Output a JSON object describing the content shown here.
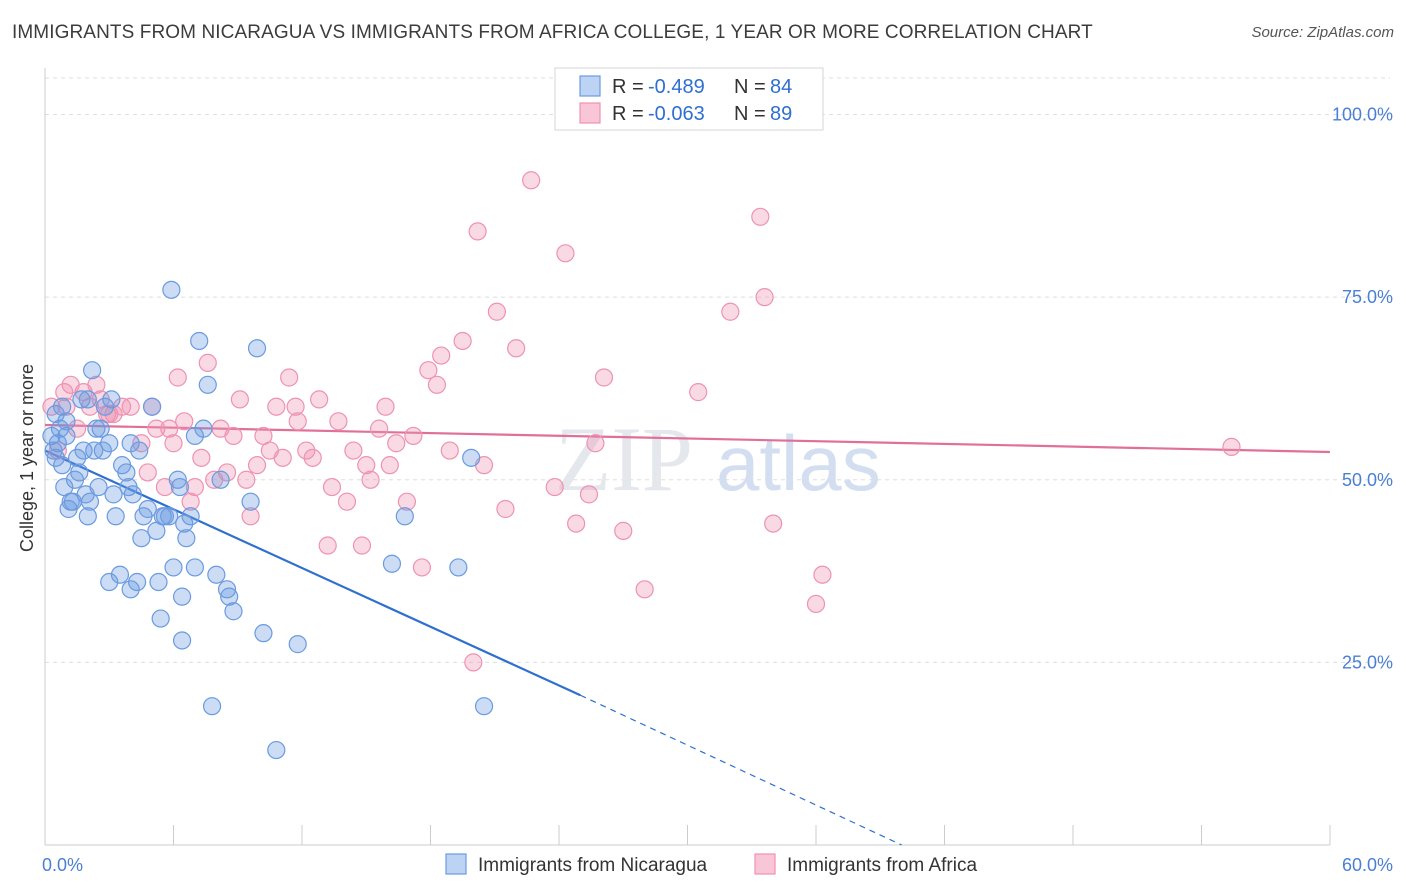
{
  "title": "IMMIGRANTS FROM NICARAGUA VS IMMIGRANTS FROM AFRICA COLLEGE, 1 YEAR OR MORE CORRELATION CHART",
  "source": "Source: ZipAtlas.com",
  "watermark": {
    "zip": "ZIP",
    "atlas": "atlas"
  },
  "legend": {
    "r_label": "R =",
    "n_label": "N =",
    "series": [
      {
        "r": "-0.489",
        "n": "84"
      },
      {
        "r": "-0.063",
        "n": "89"
      }
    ]
  },
  "chart_data": {
    "type": "scatter",
    "ylabel": "College, 1 year or more",
    "xlim": [
      0,
      60
    ],
    "ylim": [
      0,
      105
    ],
    "x_tick_labels": [
      "0.0%",
      "60.0%"
    ],
    "y_ticks": [
      25,
      50,
      75,
      100
    ],
    "y_tick_labels": [
      "25.0%",
      "50.0%",
      "75.0%",
      "100.0%"
    ],
    "grid": true,
    "colors": {
      "nicaragua": "#6a9be0",
      "africa": "#ef92b2",
      "nic_line": "#2f6fd0",
      "afr_line": "#e07099"
    },
    "series": [
      {
        "name": "Immigrants from Nicaragua",
        "trend": {
          "x0": 0,
          "y0": 54.0,
          "x1": 25,
          "y1": 20.5,
          "dash_to_x": 40,
          "dash_to_y": 0
        },
        "points": [
          [
            0.3,
            56
          ],
          [
            0.4,
            54
          ],
          [
            0.5,
            53
          ],
          [
            0.6,
            55
          ],
          [
            0.7,
            57
          ],
          [
            0.8,
            52
          ],
          [
            0.9,
            49
          ],
          [
            1.0,
            58
          ],
          [
            1.1,
            46
          ],
          [
            1.2,
            47
          ],
          [
            1.4,
            50
          ],
          [
            1.6,
            51
          ],
          [
            1.7,
            61
          ],
          [
            1.8,
            54
          ],
          [
            1.9,
            48
          ],
          [
            2.0,
            45
          ],
          [
            2.1,
            47
          ],
          [
            2.2,
            65
          ],
          [
            2.4,
            57
          ],
          [
            2.5,
            49
          ],
          [
            2.6,
            57
          ],
          [
            2.8,
            60
          ],
          [
            3.0,
            55
          ],
          [
            3.1,
            61
          ],
          [
            3.2,
            48
          ],
          [
            3.3,
            45
          ],
          [
            3.5,
            37
          ],
          [
            3.6,
            52
          ],
          [
            3.8,
            51
          ],
          [
            4.0,
            35
          ],
          [
            4.1,
            48
          ],
          [
            4.3,
            36
          ],
          [
            4.5,
            42
          ],
          [
            4.6,
            45
          ],
          [
            4.8,
            46
          ],
          [
            5.0,
            60
          ],
          [
            5.2,
            43
          ],
          [
            5.3,
            36
          ],
          [
            5.4,
            31
          ],
          [
            5.6,
            45
          ],
          [
            5.8,
            45
          ],
          [
            5.9,
            76
          ],
          [
            6.0,
            38
          ],
          [
            6.2,
            50
          ],
          [
            6.3,
            49
          ],
          [
            6.4,
            34
          ],
          [
            6.5,
            44
          ],
          [
            6.6,
            42
          ],
          [
            6.8,
            45
          ],
          [
            7.0,
            38
          ],
          [
            7.2,
            69
          ],
          [
            7.4,
            57
          ],
          [
            7.6,
            63
          ],
          [
            7.8,
            19
          ],
          [
            8.0,
            37
          ],
          [
            8.2,
            50
          ],
          [
            8.5,
            35
          ],
          [
            8.6,
            34
          ],
          [
            8.8,
            32
          ],
          [
            9.6,
            47
          ],
          [
            9.9,
            68
          ],
          [
            10.2,
            29
          ],
          [
            10.8,
            13
          ],
          [
            11.8,
            27.5
          ],
          [
            16.2,
            38.5
          ],
          [
            16.8,
            45
          ],
          [
            19.3,
            38
          ],
          [
            19.9,
            53
          ],
          [
            20.5,
            19
          ],
          [
            3.0,
            36
          ],
          [
            1.5,
            53
          ],
          [
            2.7,
            54
          ],
          [
            4.4,
            54
          ],
          [
            0.8,
            60
          ],
          [
            1.3,
            47
          ],
          [
            2.3,
            54
          ],
          [
            5.5,
            45
          ],
          [
            7.0,
            56
          ],
          [
            3.9,
            49
          ],
          [
            0.5,
            59
          ],
          [
            1.0,
            56
          ],
          [
            6.4,
            28
          ],
          [
            2.0,
            61
          ],
          [
            4.0,
            55
          ]
        ]
      },
      {
        "name": "Immigrants from Africa",
        "trend": {
          "x0": 0,
          "y0": 57.5,
          "x1": 60,
          "y1": 53.8
        },
        "points": [
          [
            0.3,
            60
          ],
          [
            0.6,
            54
          ],
          [
            0.9,
            62
          ],
          [
            1.2,
            63
          ],
          [
            1.5,
            57
          ],
          [
            1.8,
            62
          ],
          [
            2.1,
            60
          ],
          [
            2.6,
            61
          ],
          [
            2.9,
            59
          ],
          [
            3.2,
            59
          ],
          [
            3.6,
            60
          ],
          [
            4.0,
            60
          ],
          [
            4.5,
            55
          ],
          [
            4.8,
            51
          ],
          [
            5.2,
            57
          ],
          [
            5.6,
            49
          ],
          [
            5.8,
            57
          ],
          [
            6.0,
            55
          ],
          [
            6.2,
            64
          ],
          [
            6.5,
            58
          ],
          [
            6.8,
            47
          ],
          [
            7.0,
            49
          ],
          [
            7.3,
            53
          ],
          [
            7.6,
            66
          ],
          [
            7.9,
            50
          ],
          [
            8.2,
            57
          ],
          [
            8.5,
            51
          ],
          [
            8.8,
            56
          ],
          [
            9.1,
            61
          ],
          [
            9.4,
            50
          ],
          [
            9.6,
            45
          ],
          [
            9.9,
            52
          ],
          [
            10.2,
            56
          ],
          [
            10.5,
            54
          ],
          [
            10.8,
            60
          ],
          [
            11.1,
            53
          ],
          [
            11.4,
            64
          ],
          [
            11.8,
            58
          ],
          [
            12.2,
            54
          ],
          [
            12.5,
            53
          ],
          [
            12.8,
            61
          ],
          [
            13.2,
            41
          ],
          [
            13.4,
            49
          ],
          [
            13.7,
            58
          ],
          [
            14.1,
            47
          ],
          [
            14.4,
            54
          ],
          [
            14.8,
            41
          ],
          [
            15.0,
            52
          ],
          [
            15.2,
            50
          ],
          [
            15.6,
            57
          ],
          [
            15.9,
            60
          ],
          [
            16.1,
            52
          ],
          [
            16.4,
            55
          ],
          [
            16.9,
            47
          ],
          [
            17.2,
            56
          ],
          [
            17.6,
            38
          ],
          [
            17.9,
            65
          ],
          [
            18.3,
            63
          ],
          [
            18.5,
            67
          ],
          [
            18.9,
            54
          ],
          [
            19.5,
            69
          ],
          [
            20.0,
            25
          ],
          [
            20.2,
            84
          ],
          [
            20.5,
            52
          ],
          [
            21.1,
            73
          ],
          [
            21.5,
            46
          ],
          [
            22.0,
            68
          ],
          [
            22.7,
            91
          ],
          [
            23.8,
            49
          ],
          [
            24.3,
            81
          ],
          [
            24.8,
            44
          ],
          [
            25.4,
            48
          ],
          [
            25.7,
            55
          ],
          [
            26.1,
            64
          ],
          [
            27.0,
            43
          ],
          [
            28.0,
            35
          ],
          [
            30.5,
            62
          ],
          [
            32.0,
            73
          ],
          [
            33.4,
            86
          ],
          [
            33.6,
            75
          ],
          [
            34.0,
            44
          ],
          [
            36.0,
            33
          ],
          [
            36.3,
            37
          ],
          [
            55.4,
            54.5
          ],
          [
            3.0,
            59
          ],
          [
            1.0,
            60
          ],
          [
            2.4,
            63
          ],
          [
            5.0,
            60
          ],
          [
            11.7,
            60
          ]
        ]
      }
    ]
  }
}
